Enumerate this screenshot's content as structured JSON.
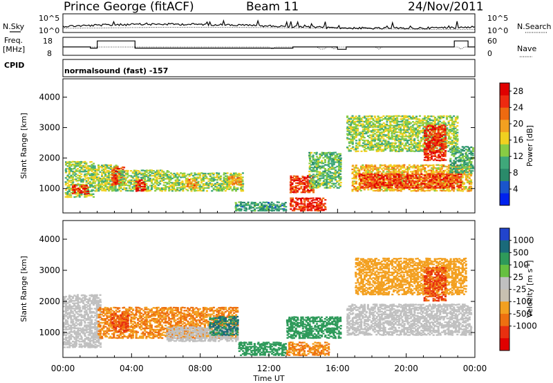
{
  "header": {
    "station": "Prince George (fitACF)",
    "beam": "Beam 11",
    "date": "24/Nov/2011"
  },
  "labels": {
    "nsky": "N.Sky",
    "nsearch": "N.Search",
    "freq_line1": "Freq.",
    "freq_line2": "[MHz]",
    "nave": "Nave",
    "cpid": "CPID",
    "cpid_value": "normalsound (fast) -157"
  },
  "noise_panel": {
    "left_ticks": [
      "10^5",
      "10^0"
    ],
    "right_ticks": [
      "10^5",
      "10^0"
    ]
  },
  "freq_panel": {
    "left_ticks": [
      "18",
      "8"
    ],
    "right_ticks": [
      "60",
      "0"
    ]
  },
  "colors": {
    "power_scale": [
      "#0022ee",
      "#1a55cc",
      "#2a8a6a",
      "#3fa87a",
      "#88cc44",
      "#f0d020",
      "#f2a020",
      "#ee6a10",
      "#ee2a10",
      "#e00000"
    ],
    "velocity_scale": [
      "#2244cc",
      "#1a6a7a",
      "#2e9a5a",
      "#66c040",
      "#c0c0c0",
      "#c8c0b0",
      "#f3a020",
      "#ee7010",
      "#e83010",
      "#e00000"
    ]
  },
  "chart_data": [
    {
      "type": "heatmap",
      "name": "power",
      "title": "Power [dB]",
      "xlabel": "Time UT",
      "ylabel": "Slant Range [km]",
      "x_ticks": [
        "00:00",
        "04:00",
        "08:00",
        "12:00",
        "16:00",
        "20:00",
        "00:00"
      ],
      "y_ticks": [
        1000,
        2000,
        3000,
        4000
      ],
      "ylim": [
        200,
        4600
      ],
      "xlim_hours": [
        0,
        24
      ],
      "colorbar_label": "Power [dB]",
      "colorbar_ticks": [
        4,
        8,
        12,
        16,
        20,
        24,
        28
      ],
      "colorbar_range": [
        0,
        30
      ],
      "regions": [
        {
          "t0": 0.1,
          "t1": 1.8,
          "r0": 700,
          "r1": 1900,
          "v": 14
        },
        {
          "t0": 0.5,
          "t1": 1.5,
          "r0": 800,
          "r1": 1100,
          "v": 26
        },
        {
          "t0": 1.8,
          "t1": 3.2,
          "r0": 900,
          "r1": 1800,
          "v": 14
        },
        {
          "t0": 2.8,
          "t1": 3.6,
          "r0": 1100,
          "r1": 1700,
          "v": 25
        },
        {
          "t0": 3.2,
          "t1": 6.2,
          "r0": 900,
          "r1": 1600,
          "v": 14
        },
        {
          "t0": 4.2,
          "t1": 4.8,
          "r0": 900,
          "r1": 1300,
          "v": 27
        },
        {
          "t0": 6.2,
          "t1": 10.5,
          "r0": 900,
          "r1": 1500,
          "v": 14
        },
        {
          "t0": 7.2,
          "t1": 7.8,
          "r0": 1000,
          "r1": 1300,
          "v": 21
        },
        {
          "t0": 9.6,
          "t1": 10.4,
          "r0": 1100,
          "r1": 1400,
          "v": 20
        },
        {
          "t0": 10.0,
          "t1": 13.0,
          "r0": 250,
          "r1": 550,
          "v": 9
        },
        {
          "t0": 13.2,
          "t1": 15.3,
          "r0": 250,
          "r1": 700,
          "v": 26
        },
        {
          "t0": 13.2,
          "t1": 14.6,
          "r0": 850,
          "r1": 1400,
          "v": 25
        },
        {
          "t0": 14.3,
          "t1": 16.2,
          "r0": 1000,
          "r1": 2200,
          "v": 12
        },
        {
          "t0": 16.8,
          "t1": 23.8,
          "r0": 900,
          "r1": 1800,
          "v": 18
        },
        {
          "t0": 17.2,
          "t1": 23.2,
          "r0": 1000,
          "r1": 1500,
          "v": 25
        },
        {
          "t0": 16.5,
          "t1": 23.0,
          "r0": 2200,
          "r1": 3400,
          "v": 14
        },
        {
          "t0": 21.0,
          "t1": 22.3,
          "r0": 1900,
          "r1": 3100,
          "v": 26
        },
        {
          "t0": 22.5,
          "t1": 23.9,
          "r0": 1500,
          "r1": 2400,
          "v": 10
        }
      ]
    },
    {
      "type": "heatmap",
      "name": "velocity",
      "title": "Velocity [m s^-1]",
      "xlabel": "Time UT",
      "ylabel": "Slant Range [km]",
      "x_ticks": [
        "00:00",
        "04:00",
        "08:00",
        "12:00",
        "16:00",
        "20:00",
        "00:00"
      ],
      "y_ticks": [
        1000,
        2000,
        3000,
        4000
      ],
      "ylim": [
        200,
        4600
      ],
      "xlim_hours": [
        0,
        24
      ],
      "colorbar_label": "Velocity [m s",
      "colorbar_label_superscript": "-1",
      "colorbar_label_suffix": "]",
      "colorbar_ticks": [
        "1000",
        "500",
        "100",
        "25",
        "-25",
        "-100",
        "-500",
        "-1000"
      ],
      "regions": [
        {
          "t0": 0.0,
          "t1": 2.2,
          "r0": 500,
          "r1": 2200,
          "v": 0
        },
        {
          "t0": 2.0,
          "t1": 10.2,
          "r0": 800,
          "r1": 1800,
          "v": -300
        },
        {
          "t0": 2.8,
          "t1": 3.8,
          "r0": 1000,
          "r1": 1600,
          "v": -700
        },
        {
          "t0": 6.0,
          "t1": 10.2,
          "r0": 700,
          "r1": 1200,
          "v": 0
        },
        {
          "t0": 8.5,
          "t1": 10.2,
          "r0": 900,
          "r1": 1500,
          "v": 300
        },
        {
          "t0": 10.2,
          "t1": 13.0,
          "r0": 250,
          "r1": 700,
          "v": 120
        },
        {
          "t0": 13.0,
          "t1": 15.5,
          "r0": 250,
          "r1": 700,
          "v": -300
        },
        {
          "t0": 13.0,
          "t1": 16.2,
          "r0": 800,
          "r1": 1500,
          "v": 100
        },
        {
          "t0": 16.5,
          "t1": 23.8,
          "r0": 900,
          "r1": 1900,
          "v": 0
        },
        {
          "t0": 17.0,
          "t1": 23.5,
          "r0": 2200,
          "r1": 3400,
          "v": -250
        },
        {
          "t0": 21.0,
          "t1": 22.3,
          "r0": 2000,
          "r1": 3100,
          "v": -700
        }
      ]
    }
  ]
}
